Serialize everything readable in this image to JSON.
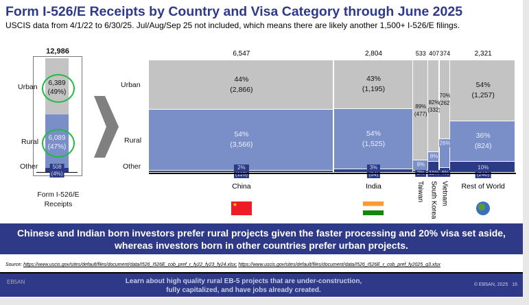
{
  "title": "Form I-526/E Receipts by Country and Visa Category through June 2025",
  "subtitle": "USCIS data from 4/1/22 to 6/30/25. Jul/Aug/Sep 25 not included, which means there are likely another 1,500+ I-526/E filings.",
  "colors": {
    "urban": "#c3c3c3",
    "rural": "#7a8fc7",
    "other": "#2b3a85",
    "accent": "#2e3a87",
    "highlight": "#22bb44"
  },
  "chart_data": [
    {
      "type": "stacked-bar",
      "title": "",
      "categories": [
        "Form I-526/E Receipts"
      ],
      "total": "12,986",
      "total_value": 12986,
      "segments": [
        {
          "name": "Urban",
          "value": 6389,
          "label": "6,389",
          "pct": "(49%)"
        },
        {
          "name": "Rural",
          "value": 6089,
          "label": "6,089",
          "pct": "(47%)"
        },
        {
          "name": "Other",
          "value": 508,
          "label": "508",
          "pct": "(4%)"
        }
      ],
      "xlabel": "Form I-526/E Receipts",
      "annotations": "Urban and Rural values circled in green"
    },
    {
      "type": "mekko",
      "row_labels": [
        "Urban",
        "Rural",
        "Other"
      ],
      "countries": [
        {
          "name": "China",
          "total": "6,547",
          "value": 6547,
          "orient": "h",
          "flag": "china-flag",
          "urban": {
            "pct": 44,
            "label": "44%",
            "n": "(2,866)"
          },
          "rural": {
            "pct": 54,
            "label": "54%",
            "n": "(3,566)"
          },
          "other": {
            "pct": 2,
            "label": "2%",
            "n": "(115)"
          }
        },
        {
          "name": "India",
          "total": "2,804",
          "value": 2804,
          "orient": "h",
          "flag": "india-flag",
          "urban": {
            "pct": 43,
            "label": "43%",
            "n": "(1,195)"
          },
          "rural": {
            "pct": 54,
            "label": "54%",
            "n": "(1,525)"
          },
          "other": {
            "pct": 3,
            "label": "3%",
            "n": "(84)"
          }
        },
        {
          "name": "Taiwan",
          "total": "533",
          "value": 533,
          "orient": "v",
          "urban": {
            "pct": 89,
            "label": "89%",
            "n": "(477)"
          },
          "rural": {
            "pct": 9,
            "label": "9%"
          },
          "other": {
            "pct": 2,
            "label": "2%"
          }
        },
        {
          "name": "South Korea",
          "total": "407",
          "value": 407,
          "orient": "v",
          "urban": {
            "pct": 82,
            "label": "82%",
            "n": "(332)"
          },
          "rural": {
            "pct": 8,
            "label": "8%"
          },
          "other": {
            "pct": 11,
            "label": "11%"
          }
        },
        {
          "name": "Vietnam",
          "total": "374",
          "value": 374,
          "orient": "v",
          "urban": {
            "pct": 70,
            "label": "70%",
            "n": "(262)"
          },
          "rural": {
            "pct": 26,
            "label": "26%"
          },
          "other": {
            "pct": 4,
            "label": "4%"
          }
        },
        {
          "name": "Rest of World",
          "total": "2,321",
          "value": 2321,
          "orient": "h",
          "flag": "globe",
          "urban": {
            "pct": 54,
            "label": "54%",
            "n": "(1,257)"
          },
          "rural": {
            "pct": 36,
            "label": "36%",
            "n": "(824)"
          },
          "other": {
            "pct": 10,
            "label": "10%",
            "n": "(240)"
          }
        }
      ]
    }
  ],
  "band": {
    "line1": "Chinese and Indian born investors prefer rural projects given the faster processing and 20% visa set aside,",
    "line2": "whereas investors born in other countries prefer urban projects."
  },
  "source": {
    "label": "Source:",
    "link1": "https://www.uscis.gov/sites/default/files/document/data/I526_I526E_cob_pref_r_fy22_fy23_fy24.xlsx;",
    "link2": "https://www.uscis.gov/sites/default/files/document/data/I526_I526E_r_cob_pref_fy2025_q3.xlsx"
  },
  "footer": {
    "logo": "EB5AN",
    "line1": "Learn about high quality rural EB-5 projects that are under-construction,",
    "line2": "fully capitalized, and have jobs already created.",
    "copyright": "© EB5AN, 2025",
    "page": "16"
  }
}
